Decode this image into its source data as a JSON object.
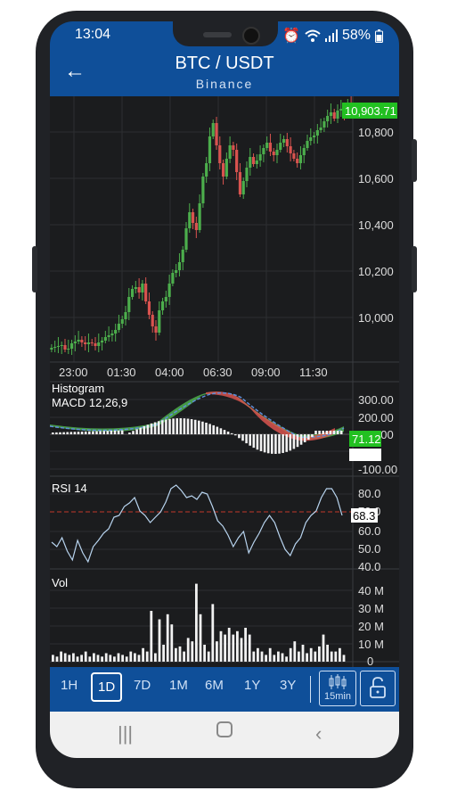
{
  "status": {
    "time": "13:04",
    "battery": "58%",
    "icons": [
      "alarm-icon",
      "wifi-icon",
      "signal-icon",
      "battery-icon"
    ]
  },
  "header": {
    "title": "BTC / USDT",
    "subtitle": "Binance"
  },
  "price_chart": {
    "y_ticks": [
      "10,800",
      "10,600",
      "10,400",
      "10,200",
      "10,000"
    ],
    "x_ticks": [
      "23:00",
      "01:30",
      "04:00",
      "06:30",
      "09:00",
      "11:30"
    ],
    "last_price": "10,903.71"
  },
  "macd": {
    "label1": "Histogram",
    "label2": "MACD 12,26,9",
    "y_ticks": [
      "300.00",
      "200.00",
      "100.00",
      "-100.00"
    ],
    "last_value": "71.12"
  },
  "rsi": {
    "label": "RSI 14",
    "y_ticks": [
      "80.0",
      "70.0",
      "60.0",
      "50.0",
      "40.0"
    ],
    "last_value": "68.3"
  },
  "volume": {
    "label": "Vol",
    "y_ticks": [
      "40 M",
      "30 M",
      "20 M",
      "10 M",
      "0"
    ]
  },
  "toolbar": {
    "ranges": [
      "1H",
      "1D",
      "7D",
      "1M",
      "6M",
      "1Y",
      "3Y"
    ],
    "selected": "1D",
    "interval": "15min"
  },
  "colors": {
    "up": "#4cae4c",
    "down": "#d9534f",
    "header": "#0f4f99",
    "price_badge": "#22c021"
  }
}
